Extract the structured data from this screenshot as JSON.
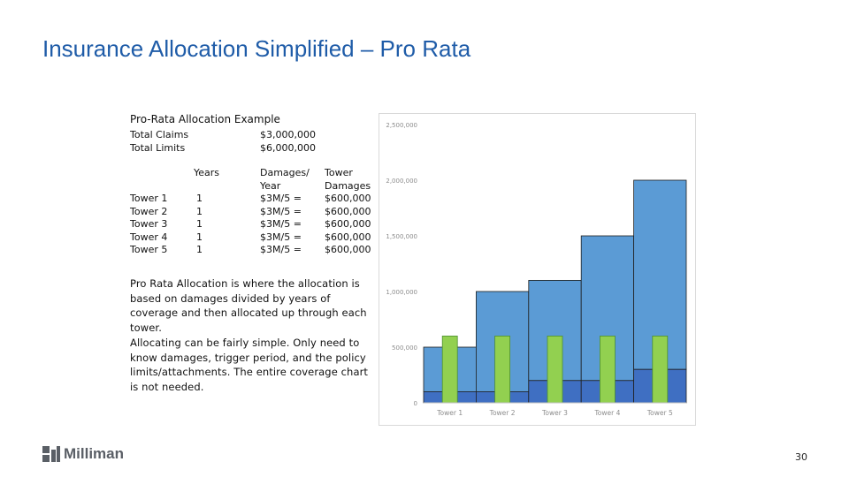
{
  "slide": {
    "title": "Insurance Allocation Simplified – Pro Rata",
    "page_number": "30",
    "logo_text": "Milliman"
  },
  "example": {
    "heading": "Pro-Rata Allocation Example",
    "total_claims_label": "Total Claims",
    "total_claims_value": "$3,000,000",
    "total_limits_label": "Total Limits",
    "total_limits_value": "$6,000,000",
    "col_years_header": "Years",
    "col_damages_header_1": "Damages/",
    "col_damages_header_2": "Year",
    "col_tower_header_1": "Tower",
    "col_tower_header_2": "Damages",
    "rows": [
      {
        "tower": "Tower 1",
        "years": "1",
        "damages": "$3M/5 =",
        "tower_damages": "$600,000"
      },
      {
        "tower": "Tower 2",
        "years": "1",
        "damages": "$3M/5 =",
        "tower_damages": "$600,000"
      },
      {
        "tower": "Tower 3",
        "years": "1",
        "damages": "$3M/5 =",
        "tower_damages": "$600,000"
      },
      {
        "tower": "Tower 4",
        "years": "1",
        "damages": "$3M/5 =",
        "tower_damages": "$600,000"
      },
      {
        "tower": "Tower 5",
        "years": "1",
        "damages": "$3M/5 =",
        "tower_damages": "$600,000"
      }
    ],
    "paragraph_1": "Pro Rata Allocation is where the allocation is based on damages divided by years of coverage and then allocated up through each tower.",
    "paragraph_2": "Allocating can be fairly simple.  Only need to know damages, trigger period, and the policy limits/attachments. The entire coverage chart is not needed."
  },
  "chart_data": {
    "type": "bar",
    "title": "",
    "xlabel": "",
    "ylabel": "",
    "categories": [
      "Tower 1",
      "Tower 2",
      "Tower 3",
      "Tower 4",
      "Tower 5"
    ],
    "ylim": [
      0,
      2500000
    ],
    "yticks": [
      0,
      500000,
      1000000,
      1500000,
      2000000,
      2500000
    ],
    "ytick_labels": [
      "0",
      "500,000",
      "1,000,000",
      "1,500,000",
      "2,000,000",
      "2,500,000"
    ],
    "grid": false,
    "series": [
      {
        "role": "primary-layer",
        "color": "#3f6fc2",
        "values": [
          100000,
          100000,
          200000,
          200000,
          300000
        ]
      },
      {
        "role": "excess-layer",
        "color": "#5b9bd5",
        "values": [
          400000,
          900000,
          900000,
          1300000,
          1700000
        ]
      },
      {
        "role": "allocation",
        "color": "#92d050",
        "values": [
          600000,
          600000,
          600000,
          600000,
          600000
        ]
      }
    ]
  }
}
